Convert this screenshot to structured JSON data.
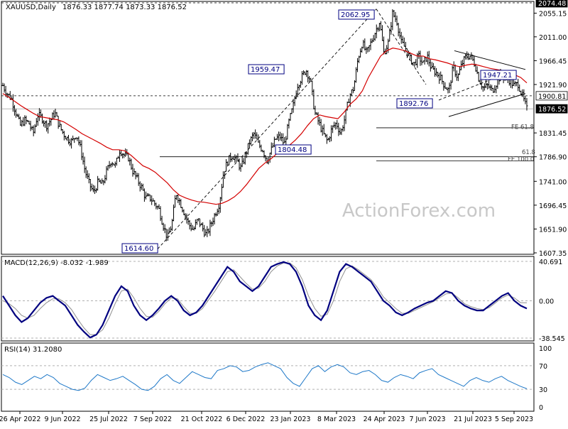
{
  "header": {
    "symbol": "XAUUSD,Daily",
    "ohlc": "1876.33 1877.74 1873.33 1876.52",
    "macd_label": "MACD(12,26,9) -8.032 -1.989",
    "rsi_label": "RSI(14) 31.2080"
  },
  "watermark": "ActionForex.com",
  "colors": {
    "price": "#000000",
    "ma": "#d40000",
    "macd": "#000080",
    "signal": "#909090",
    "rsi": "#1e78c8",
    "grid": "#b0b0b0",
    "label_border": "#000080"
  },
  "chart_data": [
    {
      "type": "bar",
      "panel": "price",
      "ylim": [
        1607.35,
        2074.48
      ],
      "y_ticks": [
        "2074.48",
        "2055.15",
        "2011.00",
        "1966.45",
        "1921.90",
        "1900.81",
        "1876.52",
        "1831.45",
        "1786.90",
        "1741.00",
        "1696.45",
        "1651.90",
        "1607.35"
      ],
      "x_ticks": [
        "26 Apr 2022",
        "9 Jun 2022",
        "25 Jul 2022",
        "7 Sep 2022",
        "21 Oct 2022",
        "6 Dec 2022",
        "23 Jan 2023",
        "8 Mar 2023",
        "24 Apr 2023",
        "7 Jun 2023",
        "21 Jul 2023",
        "5 Sep 2023"
      ],
      "close_path": [
        1920,
        1905,
        1895,
        1870,
        1845,
        1855,
        1850,
        1830,
        1865,
        1860,
        1845,
        1855,
        1870,
        1845,
        1830,
        1820,
        1815,
        1830,
        1800,
        1760,
        1735,
        1720,
        1740,
        1735,
        1760,
        1780,
        1770,
        1800,
        1790,
        1785,
        1760,
        1745,
        1730,
        1710,
        1710,
        1700,
        1690,
        1660,
        1635,
        1660,
        1720,
        1700,
        1680,
        1660,
        1650,
        1670,
        1655,
        1640,
        1660,
        1680,
        1700,
        1760,
        1780,
        1790,
        1780,
        1765,
        1790,
        1815,
        1830,
        1810,
        1800,
        1780,
        1800,
        1820,
        1825,
        1810,
        1850,
        1880,
        1920,
        1935,
        1950,
        1930,
        1870,
        1850,
        1830,
        1815,
        1840,
        1850,
        1830,
        1860,
        1900,
        1915,
        1970,
        2000,
        1980,
        2000,
        2020,
        2040,
        1980,
        2000,
        2055,
        2040,
        2000,
        1990,
        1970,
        1960,
        1975,
        1960,
        1975,
        1950,
        1945,
        1935,
        1920,
        1910,
        1955,
        1935,
        1960,
        1975,
        1975,
        1960,
        1930,
        1915,
        1920,
        1910,
        1925,
        1940,
        1935,
        1930,
        1920,
        1923,
        1900,
        1876
      ],
      "ma_path": [
        1905,
        1898,
        1890,
        1882,
        1875,
        1868,
        1862,
        1860,
        1858,
        1856,
        1852,
        1845,
        1838,
        1830,
        1824,
        1818,
        1812,
        1805,
        1800,
        1800,
        1798,
        1790,
        1780,
        1770,
        1765,
        1758,
        1748,
        1738,
        1725,
        1715,
        1710,
        1706,
        1703,
        1702,
        1700,
        1698,
        1700,
        1705,
        1712,
        1722,
        1735,
        1750,
        1765,
        1775,
        1783,
        1793,
        1801,
        1808,
        1818,
        1830,
        1845,
        1858,
        1865,
        1862,
        1860,
        1858,
        1870,
        1885,
        1895,
        1910,
        1935,
        1955,
        1975,
        1985,
        1990,
        1988,
        1985,
        1980,
        1975,
        1975,
        1970,
        1968,
        1965,
        1962,
        1958,
        1955,
        1958,
        1960,
        1958,
        1955,
        1952,
        1950,
        1948,
        1945,
        1940,
        1935,
        1925
      ],
      "annotations": [
        "2062.95",
        "1959.47",
        "1614.60",
        "1804.48",
        "1892.76",
        "1947.21",
        "FE 61.8",
        "61.8",
        "FE 100.0"
      ],
      "level_lines": [
        2074.48,
        1900.81,
        1876.52,
        1841.0,
        1786.9,
        1779.0
      ],
      "last_price": 1876.52
    },
    {
      "type": "line",
      "panel": "macd",
      "ylim": [
        -38.545,
        40.691
      ],
      "y_ticks": [
        "40.691",
        "0.00",
        "-38.545"
      ],
      "series": [
        {
          "name": "MACD",
          "values": [
            5,
            -5,
            -15,
            -22,
            -18,
            -10,
            -2,
            3,
            5,
            0,
            -5,
            -15,
            -25,
            -32,
            -38,
            -35,
            -25,
            -10,
            5,
            15,
            10,
            -5,
            -15,
            -20,
            -15,
            -8,
            0,
            5,
            0,
            -10,
            -15,
            -12,
            -5,
            5,
            15,
            25,
            35,
            30,
            20,
            15,
            10,
            15,
            25,
            35,
            38,
            40,
            38,
            30,
            15,
            -5,
            -15,
            -20,
            -10,
            10,
            30,
            38,
            35,
            30,
            25,
            20,
            10,
            0,
            -5,
            -12,
            -15,
            -12,
            -8,
            -5,
            -2,
            0,
            5,
            10,
            8,
            0,
            -5,
            -8,
            -10,
            -10,
            -5,
            0,
            5,
            8,
            0,
            -5,
            -8
          ]
        },
        {
          "name": "Signal",
          "values": [
            0,
            -3,
            -8,
            -15,
            -18,
            -15,
            -8,
            -2,
            2,
            2,
            -2,
            -9,
            -19,
            -28,
            -35,
            -35,
            -30,
            -18,
            -3,
            10,
            12,
            3,
            -8,
            -16,
            -17,
            -11,
            -3,
            3,
            2,
            -6,
            -13,
            -13,
            -8,
            1,
            10,
            20,
            30,
            32,
            25,
            18,
            12,
            13,
            20,
            30,
            36,
            39,
            39,
            34,
            22,
            5,
            -8,
            -16,
            -14,
            0,
            20,
            33,
            36,
            32,
            27,
            22,
            14,
            4,
            -2,
            -8,
            -13,
            -13,
            -10,
            -7,
            -4,
            -1,
            3,
            7,
            8,
            3,
            -3,
            -6,
            -8,
            -9,
            -7,
            -2,
            3,
            6,
            3,
            -2,
            -2
          ]
        }
      ]
    },
    {
      "type": "line",
      "panel": "rsi",
      "ylim": [
        0,
        100
      ],
      "y_ticks": [
        "100",
        "70",
        "30",
        "0"
      ],
      "series": [
        {
          "name": "RSI",
          "values": [
            55,
            50,
            42,
            38,
            45,
            52,
            48,
            55,
            50,
            40,
            35,
            30,
            28,
            32,
            45,
            55,
            50,
            45,
            48,
            52,
            45,
            38,
            30,
            28,
            35,
            48,
            55,
            45,
            40,
            50,
            60,
            55,
            50,
            48,
            62,
            65,
            70,
            68,
            60,
            62,
            68,
            72,
            75,
            70,
            65,
            50,
            40,
            35,
            50,
            65,
            70,
            60,
            68,
            72,
            68,
            58,
            55,
            60,
            62,
            55,
            45,
            42,
            50,
            55,
            52,
            48,
            58,
            62,
            65,
            55,
            50,
            45,
            40,
            35,
            45,
            50,
            45,
            42,
            48,
            52,
            45,
            40,
            35,
            31
          ]
        }
      ]
    }
  ]
}
